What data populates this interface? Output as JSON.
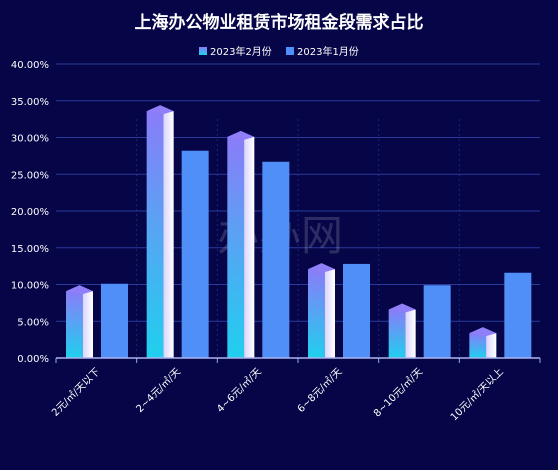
{
  "chart_data": {
    "type": "bar",
    "title": "上海办公物业租赁市场租金段需求占比",
    "categories": [
      "2元/㎡/天以下",
      "2~4元/㎡/天",
      "4~6元/㎡/天",
      "6~8元/㎡/天",
      "8~10元/㎡/天",
      "10元/㎡/天以上"
    ],
    "series": [
      {
        "name": "2023年2月份",
        "values": [
          9.5,
          34.0,
          30.5,
          12.5,
          7.0,
          3.8
        ],
        "color": "#7b6ff5",
        "gradient_bottom": "#22d3ee"
      },
      {
        "name": "2023年1月份",
        "values": [
          10.1,
          28.2,
          26.7,
          12.8,
          9.9,
          11.6
        ],
        "color": "#4f8ff7"
      }
    ],
    "ylim": [
      0,
      40
    ],
    "yticks": [
      "0.00%",
      "5.00%",
      "10.00%",
      "15.00%",
      "20.00%",
      "25.00%",
      "30.00%",
      "35.00%",
      "40.00%"
    ],
    "xlabel": "",
    "ylabel": "",
    "grid": true,
    "legend_position": "top-center"
  },
  "watermark": "办办网",
  "colors": {
    "background": "#050548",
    "grid": "#2a3a9a",
    "axis_text": "#ffffff",
    "title_text": "#ffffff"
  }
}
